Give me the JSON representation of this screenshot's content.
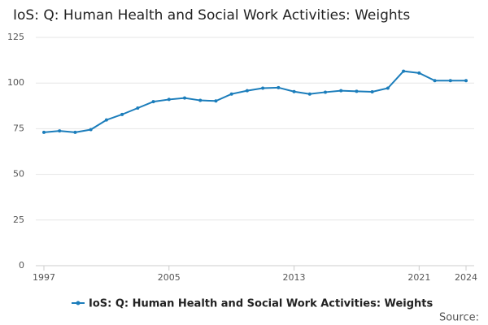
{
  "chart_data": {
    "type": "line",
    "title": "IoS: Q: Human Health and Social Work Activities: Weights",
    "x": [
      1997,
      1998,
      1999,
      2000,
      2001,
      2002,
      2003,
      2004,
      2005,
      2006,
      2007,
      2008,
      2009,
      2010,
      2011,
      2012,
      2013,
      2014,
      2015,
      2016,
      2017,
      2018,
      2019,
      2020,
      2021,
      2022,
      2023,
      2024
    ],
    "series": [
      {
        "name": "IoS: Q: Human Health and Social Work Activities: Weights",
        "color": "#1b7dbb",
        "values": [
          73,
          73.8,
          73,
          74.5,
          79.8,
          82.8,
          86.3,
          89.8,
          91,
          91.8,
          90.5,
          90.2,
          94,
          95.8,
          97.2,
          97.5,
          95.3,
          94,
          95,
          95.8,
          95.5,
          95.2,
          97.2,
          106.5,
          105.5,
          101.3,
          101.3,
          101.3
        ]
      }
    ],
    "xlim": [
      1997,
      2024
    ],
    "xticks": [
      1997,
      2005,
      2013,
      2021,
      2024
    ],
    "ylim": [
      0,
      125
    ],
    "yticks": [
      0,
      25,
      50,
      75,
      100,
      125
    ],
    "grid": true,
    "source": "Source:"
  }
}
